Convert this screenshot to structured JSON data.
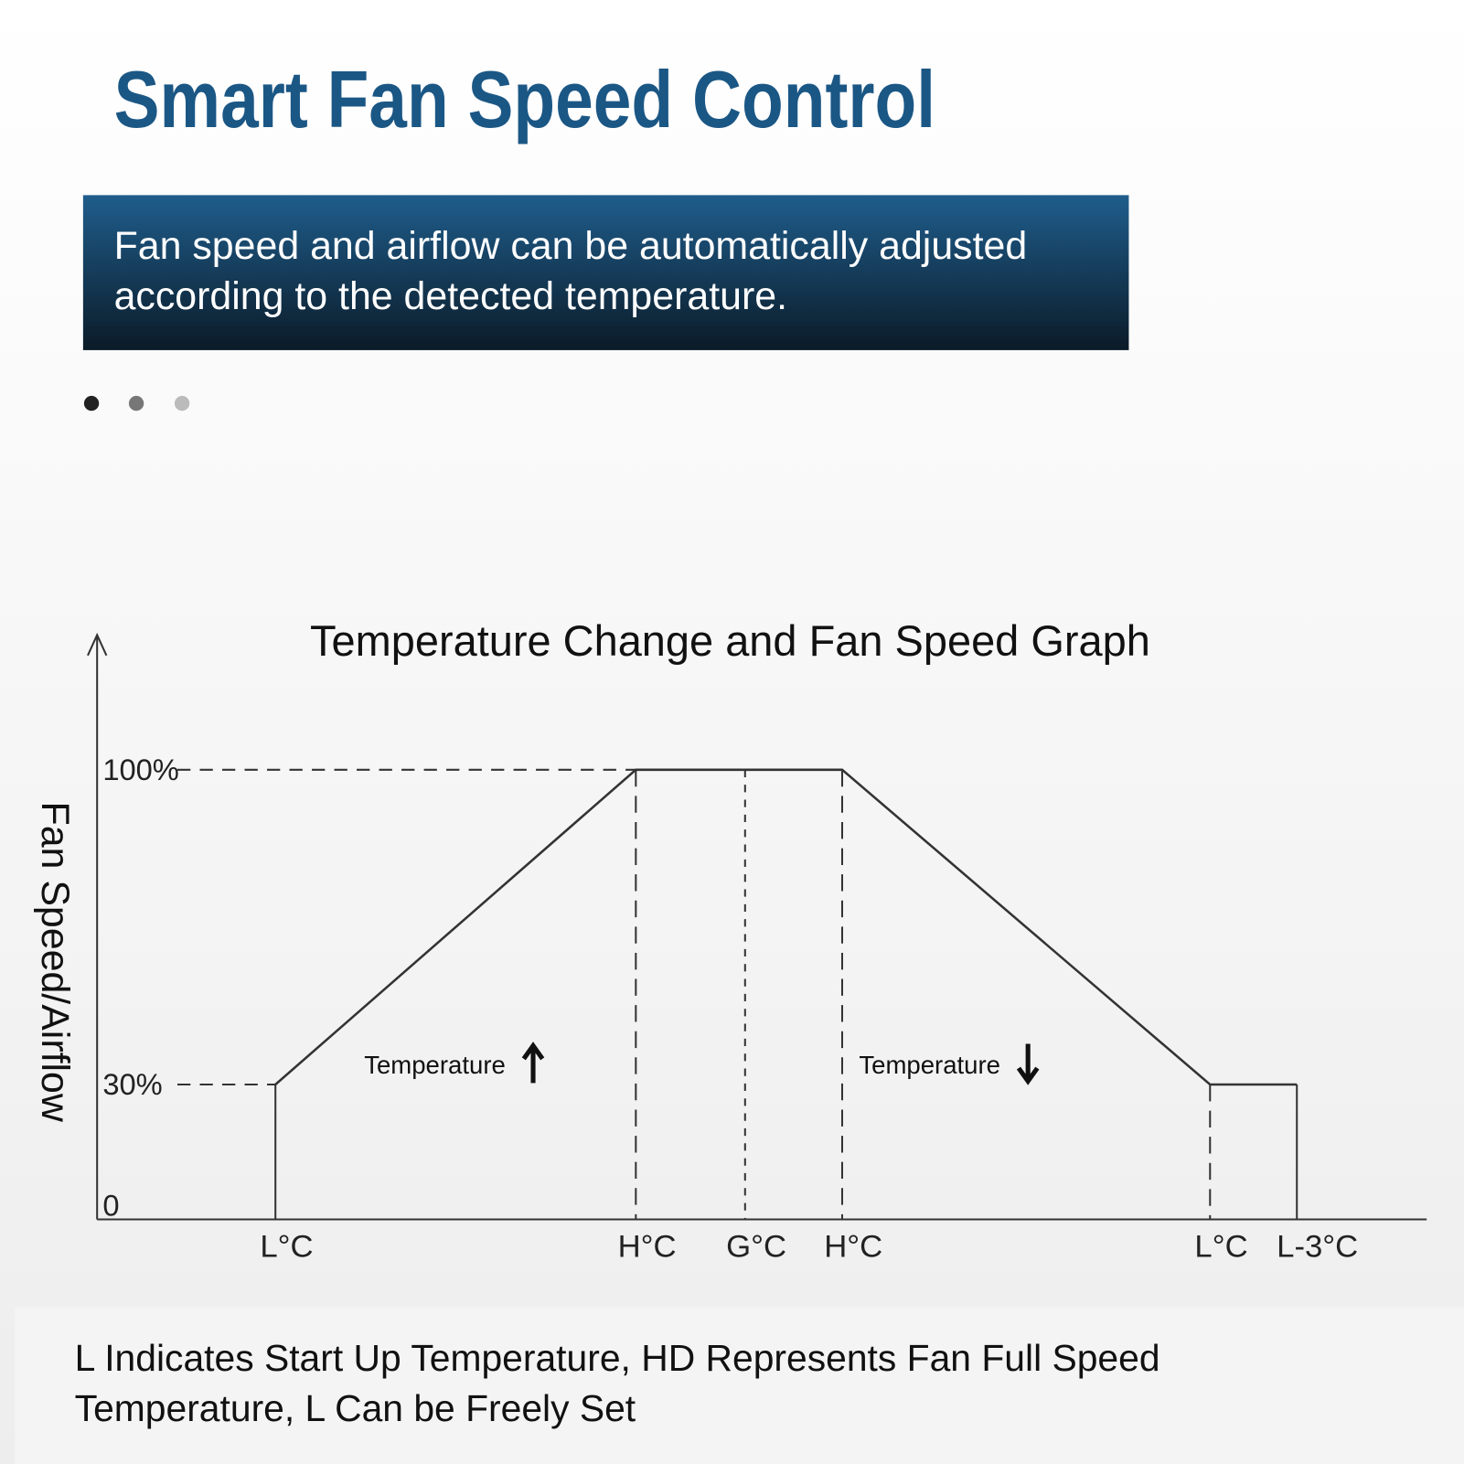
{
  "header": {
    "title": "Smart Fan Speed Control"
  },
  "banner": {
    "lines": [
      "Fan speed and airflow can be automatically adjusted",
      "according to the detected temperature."
    ]
  },
  "chart_data": {
    "type": "line",
    "title": "Temperature Change and Fan Speed Graph",
    "y_label": "Fan Speed/Airflow",
    "categories": [
      "L°C",
      "H°C",
      "G°C",
      "H°C",
      "L°C",
      "L-3°C"
    ],
    "values": [
      30,
      100,
      100,
      100,
      30,
      30
    ],
    "color": "#333333",
    "ylim": [
      0,
      130
    ],
    "yticks": [
      0,
      {
        "value": 30,
        "label": "30%"
      },
      {
        "value": 100,
        "label": "100%"
      }
    ],
    "annotations": [
      "Temperature",
      "Temperature"
    ]
  },
  "footer": {
    "lines": [
      "L Indicates Start Up Temperature, HD Represents Fan Full Speed",
      "Temperature, L Can be Freely Set"
    ]
  }
}
